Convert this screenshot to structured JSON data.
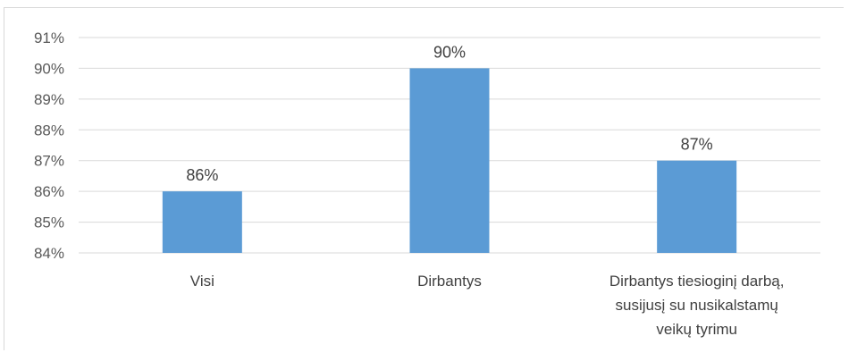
{
  "chart_data": {
    "type": "bar",
    "categories": [
      [
        "Visi"
      ],
      [
        "Dirbantys"
      ],
      [
        "Dirbantys tiesioginį darbą,",
        "susijusį su nusikalstamų",
        "veikų tyrimu"
      ]
    ],
    "values": [
      86,
      90,
      87
    ],
    "data_labels": [
      "86%",
      "90%",
      "87%"
    ],
    "ylim": [
      84,
      91
    ],
    "yticks": [
      "84%",
      "85%",
      "86%",
      "87%",
      "88%",
      "89%",
      "90%",
      "91%"
    ],
    "grid": true,
    "legend": "none",
    "bar_color": "#5b9bd5",
    "grid_color": "#d9d9d9"
  }
}
